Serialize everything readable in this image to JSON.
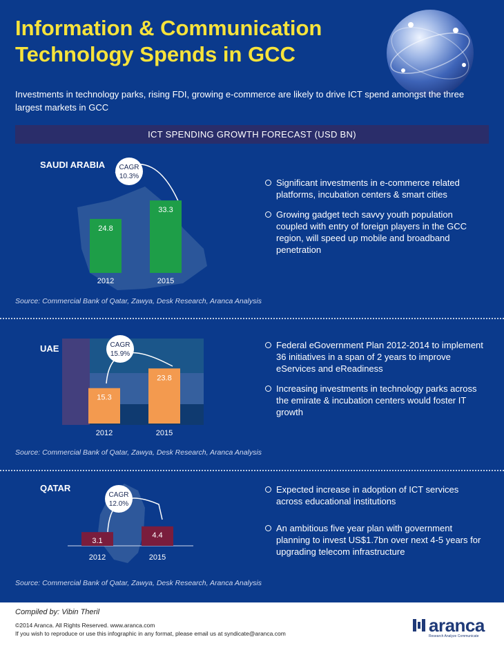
{
  "title_line1": "Information & Communication",
  "title_line2": "Technology Spends in GCC",
  "subtitle": "Investments in technology parks, rising FDI, growing e-commerce are likely to drive ICT spend amongst the three largest markets in GCC",
  "banner": "ICT SPENDING GROWTH FORECAST (USD BN)",
  "colors": {
    "background": "#0b3a8c",
    "title": "#f7e33b",
    "saudi_bar": "#1e9e48",
    "uae_bar": "#f39a4f",
    "qatar_bar": "#7a1d3d"
  },
  "sections": [
    {
      "country": "SAUDI ARABIA",
      "cagr_label": "CAGR",
      "cagr_value": "10.3%",
      "bullets": [
        "Significant investments in e-commerce related platforms, incubation centers & smart cities",
        "Growing gadget tech savvy youth population coupled with entry of foreign players in the GCC region, will speed up mobile and broadband penetration"
      ],
      "source": "Source: Commercial Bank of Qatar, Zawya, Desk Research, Aranca Analysis"
    },
    {
      "country": "UAE",
      "cagr_label": "CAGR",
      "cagr_value": "15.9%",
      "bullets": [
        "Federal eGovernment Plan 2012-2014 to implement 36 initiatives in a span of 2 years to improve eServices and eReadiness",
        "Increasing investments in technology parks across the emirate & incubation centers would foster IT growth"
      ],
      "source": "Source: Commercial Bank of Qatar, Zawya, Desk Research, Aranca Analysis"
    },
    {
      "country": "QATAR",
      "cagr_label": "CAGR",
      "cagr_value": "12.0%",
      "bullets": [
        "Expected increase in adoption of ICT services across educational institutions",
        "An ambitious five year plan with government planning to invest US$1.7bn over next 4-5 years for upgrading telecom infrastructure"
      ],
      "source": "Source: Commercial Bank of Qatar, Zawya, Desk Research, Aranca Analysis"
    }
  ],
  "chart_data": [
    {
      "type": "bar",
      "categories": [
        "2012",
        "2015"
      ],
      "values": [
        24.8,
        33.3
      ],
      "data_labels": [
        "24.8",
        "33.3"
      ]
    },
    {
      "type": "bar",
      "categories": [
        "2012",
        "2015"
      ],
      "values": [
        15.3,
        23.8
      ],
      "data_labels": [
        "15.3",
        "23.8"
      ]
    },
    {
      "type": "bar",
      "categories": [
        "2012",
        "2015"
      ],
      "values": [
        3.1,
        4.4
      ],
      "data_labels": [
        "3.1",
        "4.4"
      ]
    }
  ],
  "footer": {
    "compiled_by": "Compiled by: Vibin Theril",
    "copyright": "©2014 Aranca. All Rights Reserved. www.aranca.com",
    "reproduce_note": "If you wish to reproduce or use this infographic in any format, please email us at syndicate@aranca.com",
    "logo_text": "aranca",
    "logo_tagline": "Research Analyze Communicate"
  }
}
